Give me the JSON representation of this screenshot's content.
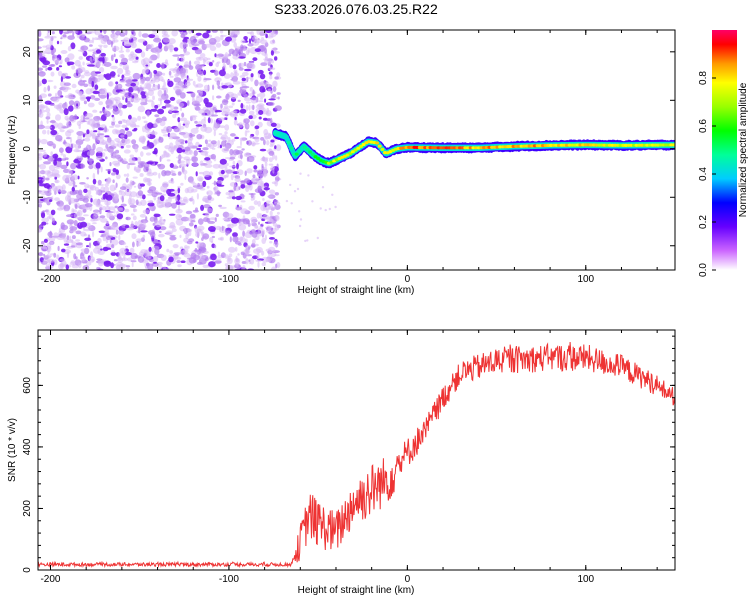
{
  "title": "S233.2026.076.03.25.R22",
  "chart_data": [
    {
      "type": "heatmap",
      "xlabel": "Height of straight line (km)",
      "ylabel": "Frequency (Hz)",
      "xlim": [
        -207,
        150
      ],
      "ylim": [
        -25,
        24.5
      ],
      "xticks": [
        -200,
        -100,
        0,
        100
      ],
      "xtick_labels": [
        "-200",
        "-100",
        "0",
        "100"
      ],
      "yticks": [
        -20,
        -10,
        0,
        10,
        20
      ],
      "ytick_labels": [
        "-20",
        "-10",
        "0",
        "10",
        "20"
      ],
      "noise_region_x": [
        -207,
        -72
      ],
      "signal_track": [
        {
          "x": -72,
          "y": 3,
          "a": 0.5
        },
        {
          "x": -68,
          "y": 2.5,
          "a": 0.45
        },
        {
          "x": -63,
          "y": -1.5,
          "a": 0.55
        },
        {
          "x": -58,
          "y": 0.5,
          "a": 0.5
        },
        {
          "x": -52,
          "y": -1.5,
          "a": 0.6
        },
        {
          "x": -48,
          "y": -2.5,
          "a": 0.6
        },
        {
          "x": -44,
          "y": -3,
          "a": 0.75
        },
        {
          "x": -38,
          "y": -2,
          "a": 0.8
        },
        {
          "x": -33,
          "y": -1.2,
          "a": 0.8
        },
        {
          "x": -28,
          "y": 0,
          "a": 0.85
        },
        {
          "x": -22,
          "y": 1.5,
          "a": 0.9
        },
        {
          "x": -17,
          "y": 1.2,
          "a": 0.85
        },
        {
          "x": -12,
          "y": -1,
          "a": 0.8
        },
        {
          "x": -6,
          "y": 0,
          "a": 0.85
        },
        {
          "x": 0,
          "y": 0.3,
          "a": 0.95
        },
        {
          "x": 20,
          "y": 0.2,
          "a": 0.95
        },
        {
          "x": 40,
          "y": 0.2,
          "a": 0.9
        },
        {
          "x": 60,
          "y": 0.5,
          "a": 0.9
        },
        {
          "x": 80,
          "y": 0.7,
          "a": 0.9
        },
        {
          "x": 100,
          "y": 0.8,
          "a": 0.85
        },
        {
          "x": 120,
          "y": 0.7,
          "a": 0.8
        },
        {
          "x": 150,
          "y": 0.8,
          "a": 0.8
        }
      ],
      "colorbar": {
        "label": "Normalized spectral amplitude",
        "range": [
          0,
          1
        ],
        "ticks": [
          0.0,
          0.2,
          0.4,
          0.6,
          0.8
        ],
        "tick_labels": [
          "0.0",
          "0.2",
          "0.4",
          "0.6",
          "0.8"
        ],
        "colormap": "rainbow"
      }
    },
    {
      "type": "line",
      "xlabel": "Height of straight line (km)",
      "ylabel": "SNR (10 * v/v)",
      "xlim": [
        -207,
        150
      ],
      "ylim": [
        0,
        780
      ],
      "xticks": [
        -200,
        -100,
        0,
        100
      ],
      "xtick_labels": [
        "-200",
        "-100",
        "0",
        "100"
      ],
      "yticks": [
        0,
        200,
        400,
        600
      ],
      "ytick_labels": [
        "0",
        "200",
        "400",
        "600"
      ],
      "series": [
        {
          "name": "SNR",
          "color": "#ee3333",
          "envelope": [
            {
              "x": -207,
              "base": 18,
              "noise": 12
            },
            {
              "x": -65,
              "base": 18,
              "noise": 12
            },
            {
              "x": -60,
              "base": 90,
              "noise": 120
            },
            {
              "x": -55,
              "base": 180,
              "noise": 160
            },
            {
              "x": -50,
              "base": 150,
              "noise": 160
            },
            {
              "x": -40,
              "base": 120,
              "noise": 140
            },
            {
              "x": -30,
              "base": 220,
              "noise": 160
            },
            {
              "x": -20,
              "base": 260,
              "noise": 180
            },
            {
              "x": -10,
              "base": 300,
              "noise": 160
            },
            {
              "x": 0,
              "base": 380,
              "noise": 100
            },
            {
              "x": 10,
              "base": 450,
              "noise": 90
            },
            {
              "x": 20,
              "base": 560,
              "noise": 80
            },
            {
              "x": 30,
              "base": 640,
              "noise": 80
            },
            {
              "x": 50,
              "base": 680,
              "noise": 90
            },
            {
              "x": 80,
              "base": 690,
              "noise": 90
            },
            {
              "x": 100,
              "base": 690,
              "noise": 90
            },
            {
              "x": 120,
              "base": 660,
              "noise": 80
            },
            {
              "x": 140,
              "base": 600,
              "noise": 70
            },
            {
              "x": 150,
              "base": 560,
              "noise": 60
            }
          ]
        }
      ]
    }
  ]
}
